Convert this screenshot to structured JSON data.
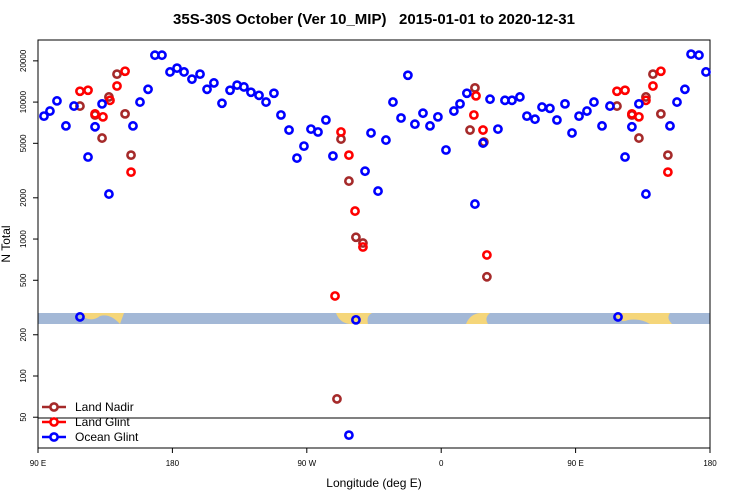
{
  "chart_data": {
    "type": "scatter",
    "title": "35S-30S October (Ver 10_MIP)   2015-01-01 to 2020-12-31",
    "x_label": "Longitude (deg E)",
    "y_label": "N Total",
    "xlim": [
      90,
      540
    ],
    "ylim": [
      29.8,
      28400
    ],
    "log_y": true,
    "xticks": [
      {
        "value": 90,
        "label": "90 E"
      },
      180,
      {
        "value": 270,
        "label": "90 W"
      },
      {
        "value": 360,
        "label": "0"
      },
      {
        "value": 450,
        "label": "90 E"
      },
      {
        "value": 540,
        "label": "180"
      }
    ],
    "yticks": [
      50,
      100,
      200,
      500,
      1000,
      2000,
      5000,
      10000,
      20000
    ],
    "legend": "bottom-left",
    "series": [
      {
        "name": "Land Nadir",
        "color": "#a52a2a",
        "x": [
          118.1,
          128.2,
          132.9,
          137.5,
          142.9,
          148.3,
          152.3,
          290.2,
          292.9,
          298.2,
          302.9,
          307.6,
          379.3,
          382.6,
          388.6,
          390.6,
          477.7,
          487.7,
          492.4,
          497.1,
          501.8,
          507.1,
          511.8
        ],
        "values": [
          9350,
          8050,
          5460,
          10900,
          16000,
          8200,
          4100,
          68,
          5370,
          2650,
          1030,
          935,
          6250,
          12700,
          5110,
          530,
          9350,
          8050,
          5460,
          10900,
          16000,
          8200,
          4100
        ]
      },
      {
        "name": "Land Glint",
        "color": "#ff0000",
        "x": [
          118.1,
          123.5,
          128.2,
          133.5,
          138.2,
          142.9,
          148.3,
          152.3,
          288.9,
          292.9,
          298.2,
          302.3,
          307.6,
          381.9,
          383.3,
          388.0,
          390.6,
          477.7,
          483.1,
          487.7,
          492.4,
          497.1,
          501.8,
          507.1,
          511.8
        ],
        "values": [
          12000,
          12200,
          8200,
          7800,
          10300,
          13100,
          16800,
          3080,
          384,
          6050,
          4100,
          1600,
          875,
          8050,
          11100,
          6250,
          765,
          12000,
          12200,
          8200,
          7800,
          10300,
          13100,
          16800,
          3080
        ]
      },
      {
        "name": "Ocean Glint",
        "color": "#0000ff",
        "x": [
          94.0,
          98.0,
          102.7,
          108.7,
          114.1,
          118.1,
          123.5,
          128.2,
          132.9,
          137.5,
          153.6,
          158.3,
          163.7,
          168.3,
          173.0,
          178.4,
          183.1,
          187.8,
          193.1,
          198.5,
          203.2,
          207.8,
          213.2,
          218.6,
          223.3,
          227.9,
          232.6,
          238.0,
          242.7,
          248.0,
          252.7,
          258.1,
          263.4,
          268.1,
          272.8,
          277.5,
          282.8,
          287.5,
          298.2,
          302.9,
          309.0,
          313.0,
          317.7,
          323.0,
          327.7,
          333.1,
          337.7,
          342.4,
          347.8,
          352.5,
          357.8,
          363.2,
          368.5,
          372.6,
          377.2,
          382.6,
          388.0,
          392.7,
          398.0,
          402.7,
          407.4,
          412.7,
          417.4,
          422.8,
          427.5,
          432.8,
          437.5,
          442.9,
          447.6,
          452.3,
          457.6,
          462.3,
          467.7,
          473.0,
          478.4,
          483.1,
          487.7,
          492.4,
          497.1,
          513.2,
          517.9,
          523.2,
          527.3,
          532.6,
          537.3
        ],
        "values": [
          7900,
          8600,
          10200,
          6700,
          9350,
          270,
          3970,
          6600,
          9700,
          2130,
          6700,
          10000,
          12400,
          22000,
          22000,
          16600,
          17700,
          16600,
          14700,
          16000,
          12400,
          13800,
          9800,
          12200,
          13300,
          12900,
          11800,
          11200,
          10000,
          11600,
          8050,
          6250,
          3900,
          4770,
          6350,
          6050,
          7400,
          4040,
          37,
          257,
          3130,
          5950,
          2240,
          5280,
          10000,
          7650,
          15700,
          6900,
          8300,
          6700,
          7800,
          4470,
          8600,
          9700,
          11600,
          1800,
          5020,
          10500,
          6350,
          10300,
          10300,
          10900,
          7900,
          7500,
          9200,
          9000,
          7400,
          9700,
          5950,
          7900,
          8600,
          10000,
          6700,
          9350,
          270,
          3970,
          6600,
          9700,
          2130,
          6700,
          10000,
          12400,
          22400,
          22000,
          16600
        ]
      }
    ]
  }
}
